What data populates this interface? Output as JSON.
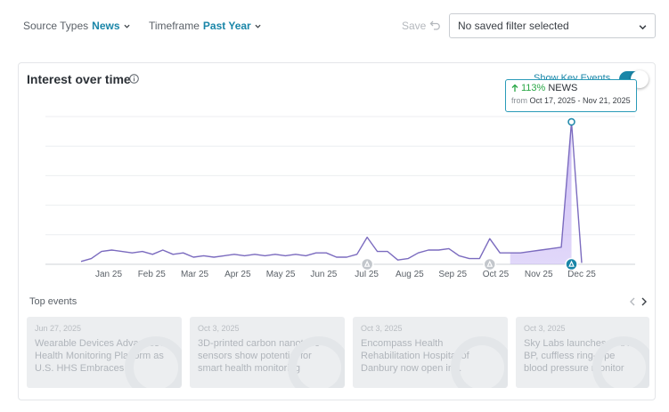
{
  "filters": {
    "source_label": "Source Types",
    "source_value": "News",
    "timeframe_label": "Timeframe",
    "timeframe_value": "Past Year",
    "save_label": "Save",
    "saved_filter_value": "No saved filter selected"
  },
  "card": {
    "title": "Interest over time",
    "toggle_label": "Show Key Events",
    "toggle_on": true,
    "accent_color": "#1a86a8",
    "line_color": "#7b6bbf",
    "area_color": "#c9b8f5"
  },
  "tooltip": {
    "pct": "113%",
    "label": "NEWS",
    "from_label": "from",
    "dates": "Oct 17, 2025 - Nov 21, 2025"
  },
  "chart_data": {
    "type": "line",
    "x_ticks": [
      "Jan 25",
      "Feb 25",
      "Mar 25",
      "Apr 25",
      "May 25",
      "Jun 25",
      "Jul 25",
      "Aug 25",
      "Sep 25",
      "Oct 25",
      "Nov 25",
      "Dec 25"
    ],
    "x_range": [
      "Dec 30, 2024",
      "Dec 28, 2025"
    ],
    "ylim": [
      0,
      100
    ],
    "grid": true,
    "series": [
      {
        "values": [
          2,
          4,
          9,
          10,
          9,
          8,
          9,
          7,
          10,
          7,
          8,
          5,
          6,
          5,
          6,
          7,
          6,
          7,
          6,
          7,
          6,
          7,
          6,
          8,
          8,
          5,
          5,
          7,
          19,
          9,
          9,
          3,
          4,
          8,
          10,
          10,
          11,
          6,
          4,
          4,
          18,
          8,
          8,
          8,
          9,
          10,
          11,
          12,
          100,
          1
        ],
        "highlight_range": [
          42,
          48
        ]
      }
    ],
    "events": [
      {
        "label": "Jul 25",
        "index": 28
      },
      {
        "label": "Oct 25",
        "index": 40
      },
      {
        "label": "Nov 25",
        "index": 48,
        "active": true
      }
    ]
  },
  "top_events": {
    "title": "Top events",
    "items": [
      {
        "date": "Jun 27, 2025",
        "text": "Wearable Devices Advances AI Health Monitoring Platform as U.S. HHS Embraces Wearable..."
      },
      {
        "date": "Oct 3, 2025",
        "text": "3D-printed carbon nanotube sensors show potential for smart health monitoring"
      },
      {
        "date": "Oct 3, 2025",
        "text": "Encompass Health Rehabilitation Hospital of Danbury now open in..."
      },
      {
        "date": "Oct 3, 2025",
        "text": "Sky Labs launches CART BP, cuffless ring-type blood pressure monitor"
      }
    ]
  }
}
